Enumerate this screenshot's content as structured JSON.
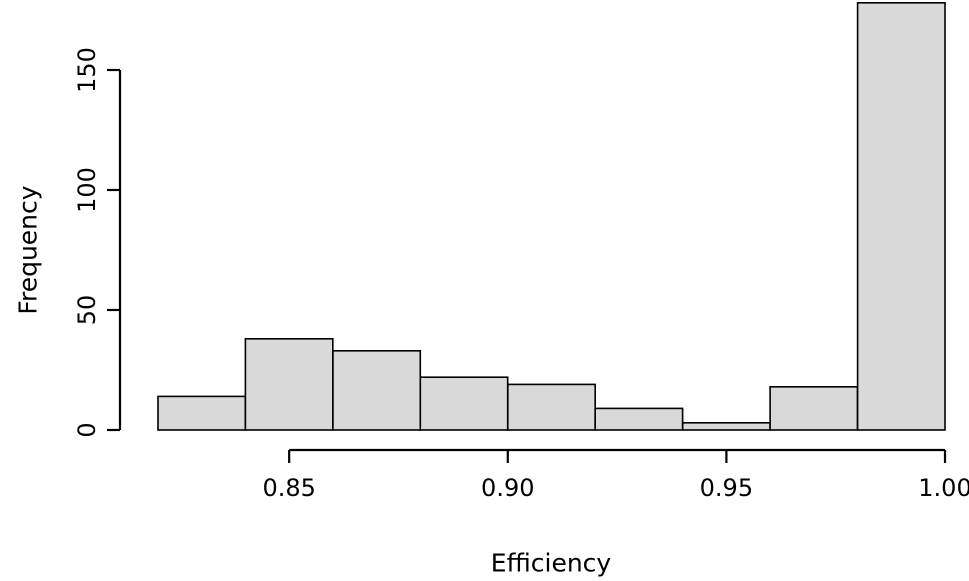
{
  "figure": {
    "background": "#ffffff"
  },
  "chart_data": {
    "type": "bar",
    "subtype": "histogram",
    "title": "",
    "xlabel": "Efficiency",
    "ylabel": "Frequency",
    "bin_edges": [
      0.82,
      0.84,
      0.86,
      0.88,
      0.9,
      0.92,
      0.94,
      0.96,
      0.98,
      1.0
    ],
    "values": [
      14,
      38,
      33,
      22,
      19,
      9,
      3,
      18,
      178
    ],
    "x_ticks": [
      {
        "value": 0.85,
        "label": "0.85"
      },
      {
        "value": 0.9,
        "label": "0.90"
      },
      {
        "value": 0.95,
        "label": "0.95"
      },
      {
        "value": 1.0,
        "label": "1.00"
      }
    ],
    "y_ticks": [
      {
        "value": 0,
        "label": "0"
      },
      {
        "value": 50,
        "label": "50"
      },
      {
        "value": 100,
        "label": "100"
      },
      {
        "value": 150,
        "label": "150"
      }
    ],
    "xlim": [
      0.82,
      1.0
    ],
    "ylim": [
      0,
      178
    ],
    "bar_fill": "#d9d9d9",
    "bar_stroke": "#000000",
    "axis_color": "#000000",
    "tick_label_color": "#000000",
    "grid": false,
    "legend": "none"
  }
}
